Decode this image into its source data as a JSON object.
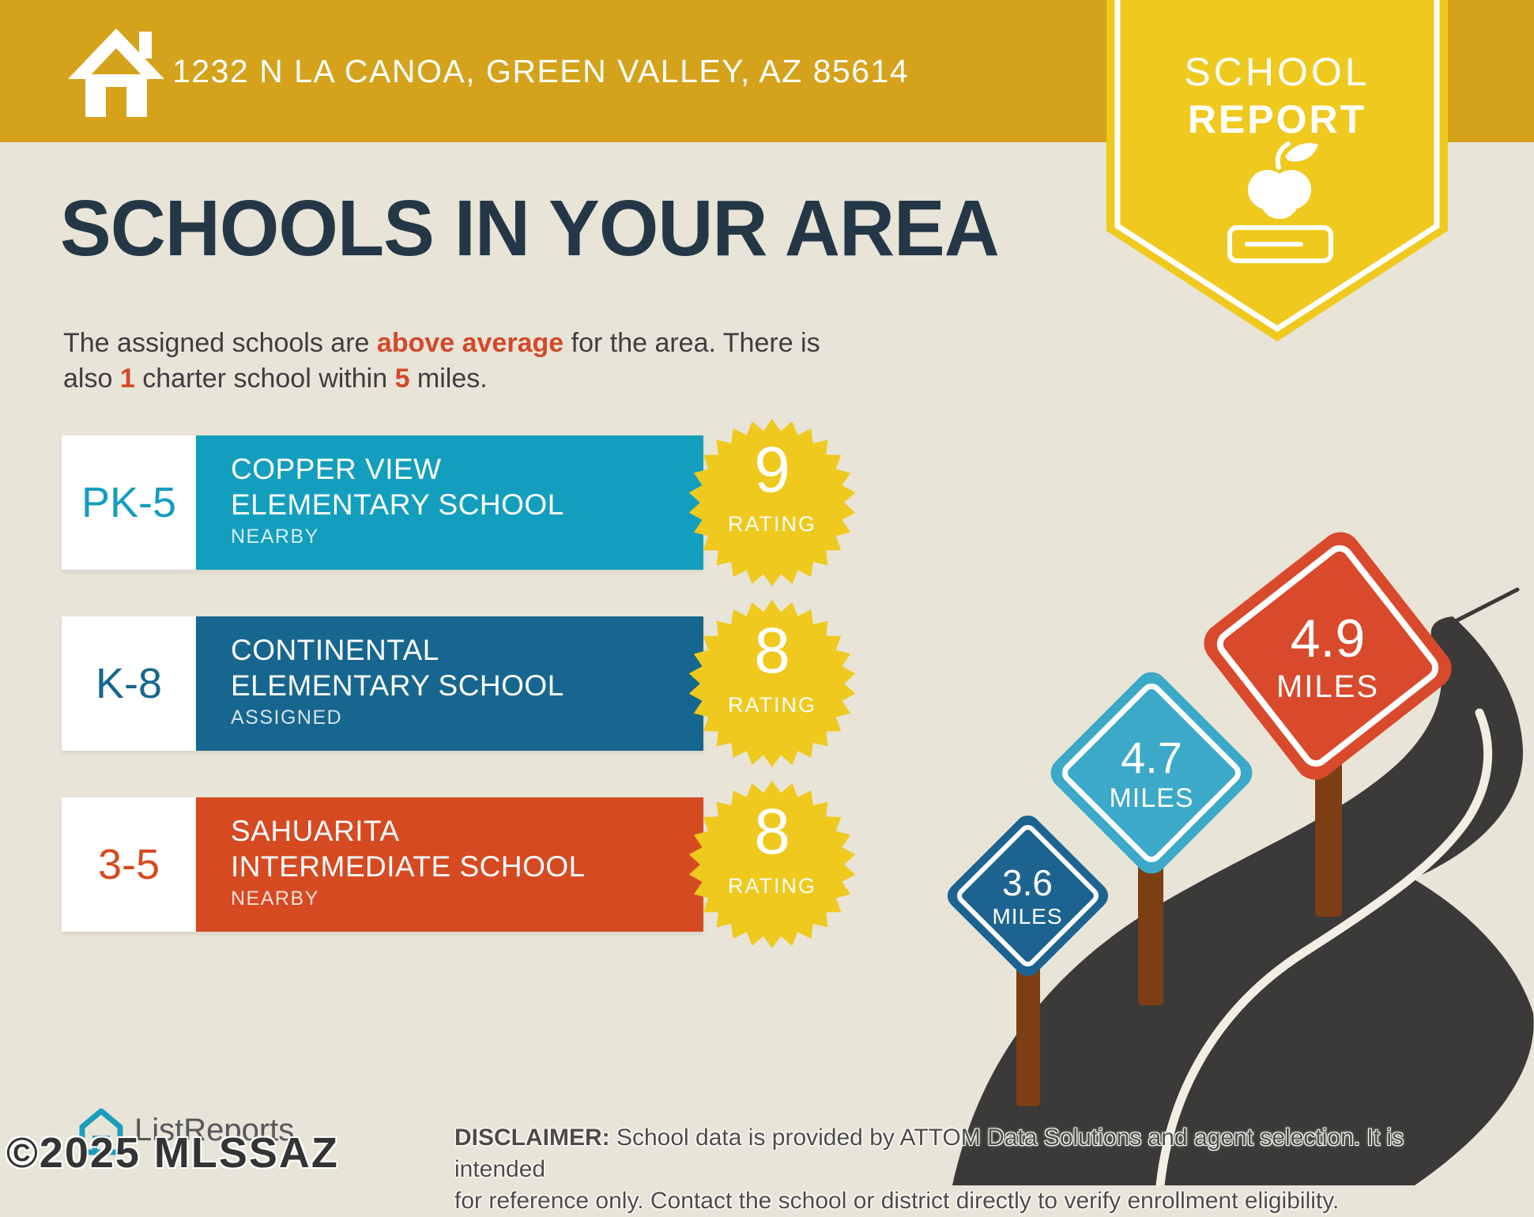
{
  "header": {
    "address": "1232 N LA CANOA, GREEN VALLEY, AZ 85614"
  },
  "report_badge": {
    "word1": "SCHOOL",
    "word2": "REPORT"
  },
  "main": {
    "title": "SCHOOLS IN YOUR AREA",
    "subtitle": {
      "part1": "The assigned schools are ",
      "em1": "above average",
      "part2a": " for the area. There is",
      "part2b": "also ",
      "em2": "1",
      "part3": " charter school within ",
      "em3": "5",
      "part4": " miles."
    }
  },
  "schools": [
    {
      "grades": "PK-5",
      "name_line1": "COPPER VIEW",
      "name_line2": "ELEMENTARY SCHOOL",
      "relationship": "NEARBY",
      "rating": "9",
      "rating_label": "RATING",
      "color": "#149EBE"
    },
    {
      "grades": "K-8",
      "name_line1": "CONTINENTAL",
      "name_line2": "ELEMENTARY SCHOOL",
      "relationship": "ASSIGNED",
      "rating": "8",
      "rating_label": "RATING",
      "color": "#17668F"
    },
    {
      "grades": "3-5",
      "name_line1": "SAHUARITA",
      "name_line2": "INTERMEDIATE SCHOOL",
      "relationship": "NEARBY",
      "rating": "8",
      "rating_label": "RATING",
      "color": "#D64A22"
    }
  ],
  "distance_signs": [
    {
      "value": "3.6",
      "unit": "MILES",
      "color": "#1D6390"
    },
    {
      "value": "4.7",
      "unit": "MILES",
      "color": "#3BA9C7"
    },
    {
      "value": "4.9",
      "unit": "MILES",
      "color": "#D84A2B"
    }
  ],
  "footer": {
    "brand": "ListReports",
    "watermark": "©2025 MLSSAZ",
    "disclaimer_label": "DISCLAIMER:",
    "disclaimer_line1": " School data is provided by ATTOM Data Solutions and agent selection. It is intended",
    "disclaimer_line2": "for reference only. Contact the school or district directly to verify enrollment eligibility."
  },
  "colors": {
    "background": "#E8E4D7",
    "header_gold": "#D5A21C",
    "badge_yellow": "#EFC91E",
    "title_navy": "#243746",
    "accent_red": "#D2492A",
    "road_charcoal": "#3B3A38",
    "road_line": "#F1EEE3",
    "post_brown": "#7C3E12"
  }
}
